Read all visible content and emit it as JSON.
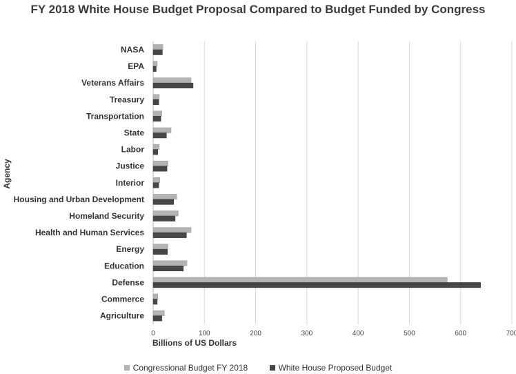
{
  "chart_data": {
    "type": "bar",
    "orientation": "horizontal",
    "title": "FY 2018 White House Budget Proposal Compared to Budget Funded by Congress",
    "xlabel": "Billions of US Dollars",
    "ylabel": "Agency",
    "xlim": [
      0,
      700
    ],
    "xticks": [
      "0",
      "100",
      "200",
      "300",
      "400",
      "500",
      "600",
      "700"
    ],
    "grid": "vertical",
    "legend_position": "bottom",
    "categories": [
      "NASA",
      "EPA",
      "Veterans Affairs",
      "Treasury",
      "Transportation",
      "State",
      "Labor",
      "Justice",
      "Interior",
      "Housing and Urban Development",
      "Homeland Security",
      "Health and Human Services",
      "Energy",
      "Education",
      "Defense",
      "Commerce",
      "Agriculture"
    ],
    "series": [
      {
        "name": "Congressional Budget FY 2018",
        "color": "#b3b3b3",
        "values": [
          19,
          8,
          74,
          12,
          17,
          35,
          12,
          29,
          13,
          46,
          49,
          74,
          29,
          66,
          574,
          9,
          22
        ]
      },
      {
        "name": "White House Proposed Budget",
        "color": "#474747",
        "values": [
          18,
          6,
          78,
          11,
          15,
          26,
          9,
          27,
          11,
          40,
          43,
          65,
          28,
          59,
          639,
          8,
          17
        ]
      }
    ]
  }
}
